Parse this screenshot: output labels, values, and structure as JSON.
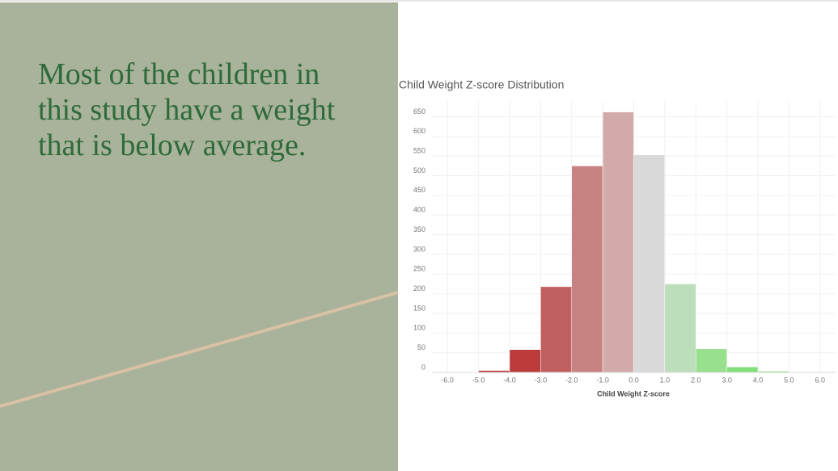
{
  "slide": {
    "heading": "Most of the children in this study have a weight that is below average."
  },
  "chart_data": {
    "type": "histogram",
    "title": "Child Weight Z-score Distribution",
    "x_label": "Child Weight Z-score",
    "bins": [
      -6,
      -5,
      -4,
      -3,
      -2,
      -1,
      0,
      1,
      2,
      3,
      4,
      5,
      6
    ],
    "values": [
      1,
      5,
      58,
      218,
      525,
      662,
      553,
      225,
      60,
      14,
      3,
      0
    ],
    "colors": [
      "#b83a3a",
      "#b83a3a",
      "#bc3b3b",
      "#c06060",
      "#c98282",
      "#d3aaaa",
      "#d9d9d9",
      "#bcdeba",
      "#98e08e",
      "#82e07a",
      "#6fdc66",
      "#6fdc66"
    ],
    "xlim": [
      -6.5,
      6.5
    ],
    "xticks": [
      {
        "value": -6,
        "label": "-6.0"
      },
      {
        "value": -5,
        "label": "-5.0"
      },
      {
        "value": -4,
        "label": "-4.0"
      },
      {
        "value": -3,
        "label": "-3.0"
      },
      {
        "value": -2,
        "label": "-2.0"
      },
      {
        "value": -1,
        "label": "-1.0"
      },
      {
        "value": 0,
        "label": "0.0"
      },
      {
        "value": 1,
        "label": "1.0"
      },
      {
        "value": 2,
        "label": "2.0"
      },
      {
        "value": 3,
        "label": "3.0"
      },
      {
        "value": 4,
        "label": "4.0"
      },
      {
        "value": 5,
        "label": "5.0"
      },
      {
        "value": 6,
        "label": "6.0"
      }
    ],
    "ylim": [
      0,
      690
    ],
    "yticks": [
      0,
      50,
      100,
      150,
      200,
      250,
      300,
      350,
      400,
      450,
      500,
      550,
      600,
      650
    ],
    "grid": true
  }
}
